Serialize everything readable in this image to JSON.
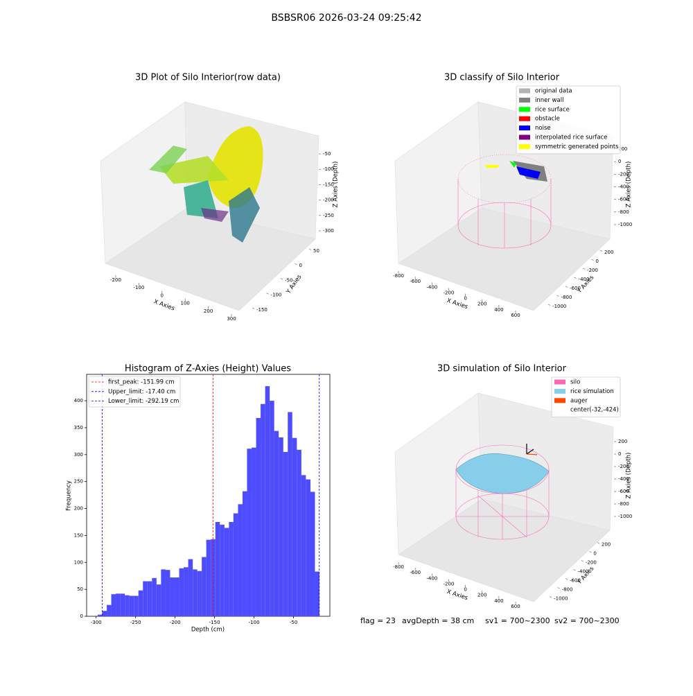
{
  "title": "BSBSR06 2026-03-24 09:25:42",
  "chart_data": [
    {
      "type": "scatter3d",
      "title": "3D Plot of Silo Interior(row data)",
      "xlabel": "X Axies",
      "ylabel": "Y Axies",
      "zlabel": "Z Axies (Depth)",
      "xlim": [
        -240,
        320
      ],
      "xticks": [
        -200,
        -100,
        0,
        100,
        200,
        300
      ],
      "ylim": [
        -170,
        65
      ],
      "yticks": [
        -150,
        -100,
        -50,
        0,
        50
      ],
      "zlim": [
        -320,
        -30
      ],
      "zticks": [
        -300,
        -250,
        -200,
        -150,
        -100,
        -50
      ]
    },
    {
      "type": "scatter3d",
      "title": "3D classify of Silo Interior",
      "xlabel": "X Axies",
      "ylabel": "Y Axies",
      "zlabel": "Z Axies (Depth)",
      "xlim": [
        -860,
        700
      ],
      "xticks": [
        -800,
        -600,
        -400,
        -200,
        0,
        200,
        400,
        600
      ],
      "ylim": [
        -1100,
        300
      ],
      "yticks": [
        -1000,
        -800,
        -600,
        -400,
        -200,
        0,
        200
      ],
      "zlim": [
        -1100,
        300
      ],
      "zticks": [
        -1000,
        -800,
        -600,
        -400,
        -200,
        0,
        200
      ],
      "legend": [
        {
          "name": "original data",
          "color": "#b3b3b3"
        },
        {
          "name": "inner wall",
          "color": "#808080"
        },
        {
          "name": "rice surface",
          "color": "#00ff00"
        },
        {
          "name": "obstacle",
          "color": "#ff0000"
        },
        {
          "name": "noise",
          "color": "#0000ff"
        },
        {
          "name": "interpolated rice surface",
          "color": "#800080"
        },
        {
          "name": "symmetric generated points",
          "color": "#ffff00"
        }
      ],
      "legend_position": "upper right"
    },
    {
      "type": "histogram",
      "title": "Histogram of Z-Axies (Height) Values",
      "xlabel": "Depth (cm)",
      "ylabel": "Frequency",
      "color": "#4d4dff",
      "bins": [
        -298.0,
        -292.3,
        -286.5,
        -280.8,
        -275.1,
        -269.3,
        -263.6,
        -257.9,
        -252.2,
        -246.4,
        -240.7,
        -235.0,
        -229.2,
        -223.5,
        -217.8,
        -212.0,
        -206.3,
        -200.6,
        -194.8,
        -189.1,
        -183.4,
        -177.6,
        -171.9,
        -166.2,
        -160.5,
        -154.7,
        -149.0,
        -143.3,
        -137.5,
        -131.8,
        -126.1,
        -120.3,
        -114.6,
        -108.9,
        -103.1,
        -97.4,
        -91.7,
        -85.9,
        -80.2,
        -74.5,
        -68.8,
        -63.0,
        -57.3,
        -51.6,
        -45.8,
        -40.1,
        -34.4,
        -28.6,
        -22.9,
        -17.2
      ],
      "values": [
        3,
        10,
        21,
        41,
        42,
        42,
        39,
        38,
        38,
        48,
        65,
        65,
        71,
        59,
        87,
        86,
        72,
        72,
        89,
        91,
        106,
        87,
        84,
        110,
        142,
        143,
        175,
        170,
        164,
        175,
        191,
        208,
        232,
        311,
        313,
        368,
        394,
        427,
        400,
        344,
        332,
        305,
        379,
        331,
        309,
        262,
        254,
        231,
        83
      ],
      "xlim": [
        -312,
        -4
      ],
      "xticks": [
        -300,
        -250,
        -200,
        -150,
        -100,
        -50
      ],
      "ylim": [
        0,
        449
      ],
      "yticks": [
        0,
        50,
        100,
        150,
        200,
        250,
        300,
        350,
        400
      ],
      "vlines": [
        {
          "label": "first_peak: -151.99 cm",
          "value": -151.99,
          "color": "#ff0000"
        },
        {
          "label": "Upper_limit: -17.40 cm",
          "value": -17.4,
          "color": "#0000ff"
        },
        {
          "label": "Lower_limit: -292.19 cm",
          "value": -292.19,
          "color": "#0000ff"
        }
      ],
      "legend_position": "upper left"
    },
    {
      "type": "scatter3d",
      "title": "3D simulation of Silo Interior",
      "xlabel": "X Axies",
      "ylabel": "Y Axies",
      "zlabel": "Z Axies (Depth)",
      "xlim": [
        -860,
        700
      ],
      "xticks": [
        -800,
        -600,
        -400,
        -200,
        0,
        200,
        400,
        600
      ],
      "ylim": [
        -1100,
        300
      ],
      "yticks": [
        -1000,
        -800,
        -600,
        -400,
        -200,
        0,
        200
      ],
      "zlim": [
        -1100,
        300
      ],
      "zticks": [
        -1000,
        -800,
        -600,
        -400,
        -200,
        0,
        200
      ],
      "legend": [
        {
          "name": "silo",
          "color": "#ff69b4"
        },
        {
          "name": "rice simulation",
          "color": "#87ceeb"
        },
        {
          "name": "auger",
          "color": "#ff4500"
        },
        {
          "name": "center(-32,-424)"
        }
      ],
      "legend_position": "upper right"
    }
  ],
  "footer": [
    "flag = 23",
    "avgDepth = 38 cm",
    "sv1 = 700~2300",
    "sv2 = 700~2300"
  ]
}
